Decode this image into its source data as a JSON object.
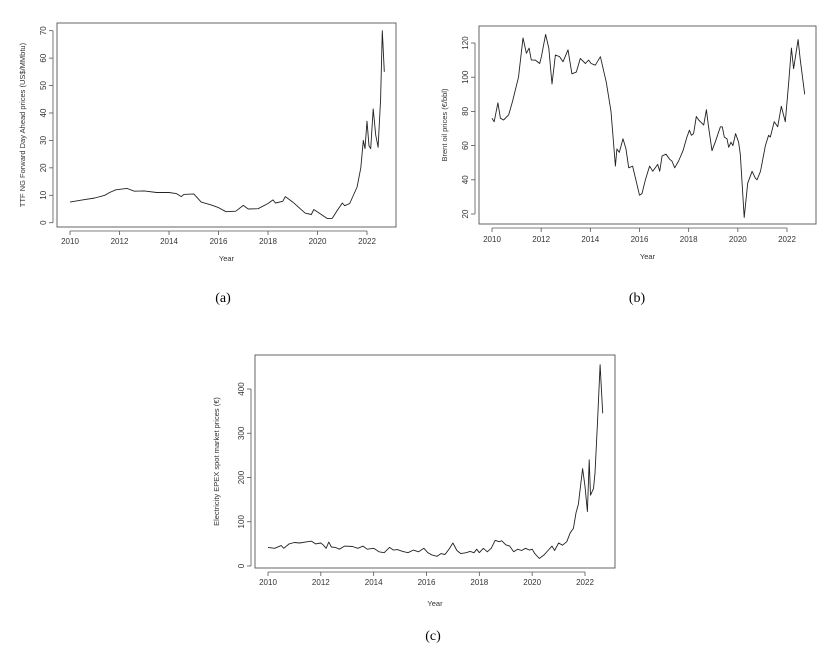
{
  "chart_data": [
    {
      "type": "line",
      "caption": "(a)",
      "xlabel": "Year",
      "ylabel": "TTF NG Forward Day Ahead prices (US$/MMbtu)",
      "x_ticks": [
        "2010",
        "2012",
        "2014",
        "2016",
        "2018",
        "2020",
        "2022"
      ],
      "y_ticks": [
        "0",
        "10",
        "20",
        "30",
        "40",
        "50",
        "60",
        "70"
      ],
      "xlim": [
        2010,
        2022.7
      ],
      "ylim": [
        0,
        70
      ],
      "series": [
        {
          "name": "TTF NG",
          "points": [
            [
              2010,
              7.5
            ],
            [
              2010.5,
              8.3
            ],
            [
              2011,
              9
            ],
            [
              2011.4,
              10
            ],
            [
              2011.6,
              11
            ],
            [
              2011.85,
              12
            ],
            [
              2012.3,
              12.5
            ],
            [
              2012.6,
              11.5
            ],
            [
              2013,
              11.6
            ],
            [
              2013.5,
              11
            ],
            [
              2014,
              11
            ],
            [
              2014.3,
              10.6
            ],
            [
              2014.5,
              9.5
            ],
            [
              2014.6,
              10.3
            ],
            [
              2015,
              10.5
            ],
            [
              2015.3,
              7.5
            ],
            [
              2015.7,
              6.5
            ],
            [
              2016,
              5.5
            ],
            [
              2016.3,
              4
            ],
            [
              2016.7,
              4.2
            ],
            [
              2017,
              6.3
            ],
            [
              2017.2,
              5
            ],
            [
              2017.6,
              5.1
            ],
            [
              2018,
              7
            ],
            [
              2018.2,
              8.3
            ],
            [
              2018.3,
              7.2
            ],
            [
              2018.6,
              7.8
            ],
            [
              2018.7,
              9.5
            ],
            [
              2019,
              7.5
            ],
            [
              2019.5,
              3.5
            ],
            [
              2019.75,
              3
            ],
            [
              2019.85,
              4.8
            ],
            [
              2020.1,
              3.3
            ],
            [
              2020.4,
              1.5
            ],
            [
              2020.6,
              1.6
            ],
            [
              2020.8,
              4.5
            ],
            [
              2021,
              7.2
            ],
            [
              2021.1,
              6.2
            ],
            [
              2021.3,
              7
            ],
            [
              2021.6,
              13
            ],
            [
              2021.75,
              20
            ],
            [
              2021.85,
              30
            ],
            [
              2021.92,
              27
            ],
            [
              2022.0,
              37
            ],
            [
              2022.08,
              28
            ],
            [
              2022.15,
              27
            ],
            [
              2022.25,
              41.5
            ],
            [
              2022.35,
              32
            ],
            [
              2022.45,
              27.5
            ],
            [
              2022.55,
              45
            ],
            [
              2022.62,
              70
            ],
            [
              2022.7,
              55
            ]
          ]
        }
      ]
    },
    {
      "type": "line",
      "caption": "(b)",
      "xlabel": "Year",
      "ylabel": "Brent oil prices (€/bbl)",
      "x_ticks": [
        "2010",
        "2012",
        "2014",
        "2016",
        "2018",
        "2020",
        "2022"
      ],
      "y_ticks": [
        "20",
        "40",
        "60",
        "80",
        "100",
        "120"
      ],
      "xlim": [
        2010,
        2022.72
      ],
      "ylim": [
        18,
        125
      ],
      "series": [
        {
          "name": "Brent",
          "points": [
            [
              2010,
              76
            ],
            [
              2010.09,
              74
            ],
            [
              2010.24,
              85
            ],
            [
              2010.34,
              76
            ],
            [
              2010.47,
              75
            ],
            [
              2010.68,
              78
            ],
            [
              2010.84,
              86
            ],
            [
              2011.08,
              100
            ],
            [
              2011.26,
              123
            ],
            [
              2011.4,
              114
            ],
            [
              2011.51,
              117
            ],
            [
              2011.6,
              110
            ],
            [
              2011.76,
              110
            ],
            [
              2011.94,
              108
            ],
            [
              2012.01,
              112
            ],
            [
              2012.18,
              125
            ],
            [
              2012.31,
              117
            ],
            [
              2012.44,
              96
            ],
            [
              2012.58,
              113
            ],
            [
              2012.75,
              112
            ],
            [
              2012.89,
              109
            ],
            [
              2013.09,
              116
            ],
            [
              2013.25,
              102
            ],
            [
              2013.43,
              103
            ],
            [
              2013.59,
              111
            ],
            [
              2013.8,
              108
            ],
            [
              2013.93,
              110
            ],
            [
              2014.03,
              108
            ],
            [
              2014.2,
              107
            ],
            [
              2014.41,
              112
            ],
            [
              2014.65,
              97
            ],
            [
              2014.84,
              80
            ],
            [
              2015.02,
              48
            ],
            [
              2015.08,
              58
            ],
            [
              2015.18,
              56
            ],
            [
              2015.33,
              64
            ],
            [
              2015.45,
              58
            ],
            [
              2015.56,
              47
            ],
            [
              2015.72,
              48
            ],
            [
              2016.0,
              31
            ],
            [
              2016.1,
              32
            ],
            [
              2016.24,
              40
            ],
            [
              2016.41,
              48
            ],
            [
              2016.54,
              45
            ],
            [
              2016.74,
              49
            ],
            [
              2016.82,
              45
            ],
            [
              2016.92,
              54
            ],
            [
              2017.08,
              55
            ],
            [
              2017.23,
              52
            ],
            [
              2017.32,
              51
            ],
            [
              2017.43,
              47
            ],
            [
              2017.59,
              51
            ],
            [
              2017.77,
              57
            ],
            [
              2017.93,
              65
            ],
            [
              2018.03,
              69
            ],
            [
              2018.11,
              66
            ],
            [
              2018.2,
              67
            ],
            [
              2018.31,
              77
            ],
            [
              2018.41,
              75
            ],
            [
              2018.61,
              72
            ],
            [
              2018.72,
              81
            ],
            [
              2018.8,
              72
            ],
            [
              2018.95,
              57
            ],
            [
              2019.08,
              62
            ],
            [
              2019.29,
              71
            ],
            [
              2019.37,
              71
            ],
            [
              2019.45,
              65
            ],
            [
              2019.56,
              64
            ],
            [
              2019.63,
              59
            ],
            [
              2019.72,
              62
            ],
            [
              2019.8,
              60
            ],
            [
              2019.91,
              67
            ],
            [
              2020.03,
              62
            ],
            [
              2020.1,
              55
            ],
            [
              2020.26,
              18
            ],
            [
              2020.4,
              38
            ],
            [
              2020.58,
              45
            ],
            [
              2020.71,
              41
            ],
            [
              2020.78,
              40
            ],
            [
              2020.92,
              45
            ],
            [
              2021.12,
              60
            ],
            [
              2021.25,
              66
            ],
            [
              2021.32,
              65
            ],
            [
              2021.48,
              74
            ],
            [
              2021.62,
              71
            ],
            [
              2021.77,
              83
            ],
            [
              2021.93,
              74
            ],
            [
              2022.07,
              97
            ],
            [
              2022.18,
              117
            ],
            [
              2022.27,
              105
            ],
            [
              2022.45,
              122
            ],
            [
              2022.54,
              110
            ],
            [
              2022.72,
              90
            ]
          ]
        }
      ]
    },
    {
      "type": "line",
      "caption": "(c)",
      "xlabel": "Year",
      "ylabel": "Electricity EPEX spot market prices (€)",
      "x_ticks": [
        "2010",
        "2012",
        "2014",
        "2016",
        "2018",
        "2020",
        "2022"
      ],
      "y_ticks": [
        "0",
        "100",
        "200",
        "300",
        "400"
      ],
      "xlim": [
        2010,
        2022.67
      ],
      "ylim": [
        0,
        455
      ],
      "series": [
        {
          "name": "EPEX",
          "points": [
            [
              2010,
              42
            ],
            [
              2010.25,
              40
            ],
            [
              2010.5,
              46
            ],
            [
              2010.6,
              40
            ],
            [
              2010.8,
              50
            ],
            [
              2011,
              53
            ],
            [
              2011.2,
              52
            ],
            [
              2011.5,
              55
            ],
            [
              2011.65,
              56
            ],
            [
              2011.8,
              50
            ],
            [
              2012,
              52
            ],
            [
              2012.1,
              47
            ],
            [
              2012.2,
              40
            ],
            [
              2012.3,
              54
            ],
            [
              2012.4,
              43
            ],
            [
              2012.55,
              42
            ],
            [
              2012.7,
              38
            ],
            [
              2012.9,
              45
            ],
            [
              2013.2,
              44
            ],
            [
              2013.4,
              40
            ],
            [
              2013.6,
              45
            ],
            [
              2013.75,
              38
            ],
            [
              2014,
              40
            ],
            [
              2014.2,
              32
            ],
            [
              2014.4,
              30
            ],
            [
              2014.6,
              42
            ],
            [
              2014.75,
              36
            ],
            [
              2014.9,
              37
            ],
            [
              2015.1,
              33
            ],
            [
              2015.3,
              30
            ],
            [
              2015.5,
              36
            ],
            [
              2015.7,
              32
            ],
            [
              2015.9,
              40
            ],
            [
              2016.05,
              30
            ],
            [
              2016.2,
              25
            ],
            [
              2016.4,
              22
            ],
            [
              2016.55,
              28
            ],
            [
              2016.7,
              26
            ],
            [
              2016.85,
              38
            ],
            [
              2017.0,
              52
            ],
            [
              2017.15,
              35
            ],
            [
              2017.3,
              28
            ],
            [
              2017.5,
              30
            ],
            [
              2017.65,
              33
            ],
            [
              2017.8,
              30
            ],
            [
              2017.9,
              38
            ],
            [
              2018.0,
              30
            ],
            [
              2018.15,
              40
            ],
            [
              2018.3,
              32
            ],
            [
              2018.45,
              40
            ],
            [
              2018.6,
              58
            ],
            [
              2018.75,
              55
            ],
            [
              2018.85,
              57
            ],
            [
              2019.0,
              48
            ],
            [
              2019.15,
              45
            ],
            [
              2019.3,
              32
            ],
            [
              2019.45,
              38
            ],
            [
              2019.6,
              35
            ],
            [
              2019.75,
              40
            ],
            [
              2019.9,
              36
            ],
            [
              2020.0,
              38
            ],
            [
              2020.1,
              28
            ],
            [
              2020.27,
              17
            ],
            [
              2020.45,
              25
            ],
            [
              2020.6,
              35
            ],
            [
              2020.75,
              45
            ],
            [
              2020.85,
              35
            ],
            [
              2021.0,
              52
            ],
            [
              2021.15,
              47
            ],
            [
              2021.31,
              55
            ],
            [
              2021.44,
              75
            ],
            [
              2021.56,
              85
            ],
            [
              2021.66,
              120
            ],
            [
              2021.75,
              140
            ],
            [
              2021.91,
              220
            ],
            [
              2022.0,
              180
            ],
            [
              2022.09,
              123
            ],
            [
              2022.16,
              240
            ],
            [
              2022.21,
              160
            ],
            [
              2022.32,
              175
            ],
            [
              2022.38,
              210
            ],
            [
              2022.47,
              320
            ],
            [
              2022.57,
              455
            ],
            [
              2022.67,
              345
            ]
          ]
        }
      ]
    }
  ]
}
